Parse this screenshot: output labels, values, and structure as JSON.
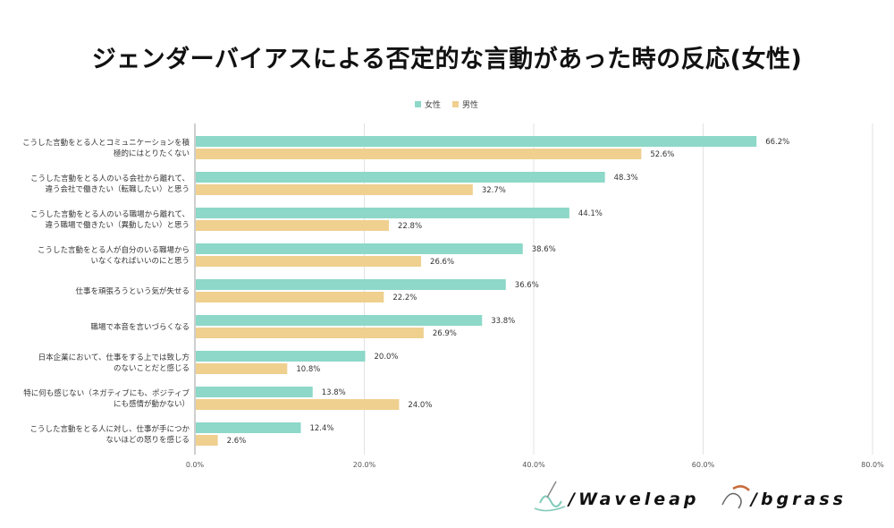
{
  "title": "ジェンダーバイアスによる否定的な言動があった時の反応(女性)",
  "colors": {
    "female": "#8dd8c8",
    "male": "#efd08f",
    "grid": "#e2e2e2",
    "axis": "#bdbdbd"
  },
  "chart_data": {
    "type": "bar",
    "orientation": "horizontal",
    "title": "ジェンダーバイアスによる否定的な言動があった時の反応(女性)",
    "xlim": [
      0,
      80
    ],
    "ticks": [
      "0.0%",
      "20.0%",
      "40.0%",
      "60.0%",
      "80.0%"
    ],
    "tick_values": [
      0,
      20,
      40,
      60,
      80
    ],
    "legend_position": "top",
    "categories": [
      [
        "こうした言動をとる人とコミュニケーションを積",
        "極的にはとりたくない"
      ],
      [
        "こうした言動をとる人のいる会社から離れて、",
        "違う会社で働きたい（転職したい）と思う"
      ],
      [
        "こうした言動をとる人のいる職場から離れて、",
        "違う職場で働きたい（異動したい）と思う"
      ],
      [
        "こうした言動をとる人が自分のいる職場から",
        "いなくなればいいのにと思う"
      ],
      [
        "仕事を頑張ろうという気が失せる"
      ],
      [
        "職場で本音を言いづらくなる"
      ],
      [
        "日本企業において、仕事をする上では致し方",
        "のないことだと感じる"
      ],
      [
        "特に何も感じない（ネガティブにも、ポジティブ",
        "にも感情が動かない）"
      ],
      [
        "こうした言動をとる人に対し、仕事が手につか",
        "ないほどの怒りを感じる"
      ]
    ],
    "series": [
      {
        "name": "女性",
        "values": [
          66.2,
          48.3,
          44.1,
          38.6,
          36.6,
          33.8,
          20.0,
          13.8,
          12.4
        ],
        "labels": [
          "66.2%",
          "48.3%",
          "44.1%",
          "38.6%",
          "36.6%",
          "33.8%",
          "20.0%",
          "13.8%",
          "12.4%"
        ]
      },
      {
        "name": "男性",
        "values": [
          52.6,
          32.7,
          22.8,
          26.6,
          22.2,
          26.9,
          10.8,
          24.0,
          2.6
        ],
        "labels": [
          "52.6%",
          "32.7%",
          "22.8%",
          "26.6%",
          "22.2%",
          "26.9%",
          "10.8%",
          "24.0%",
          "2.6%"
        ]
      }
    ]
  },
  "logos": {
    "left": "/Waveleap",
    "right": "/bgrass"
  }
}
